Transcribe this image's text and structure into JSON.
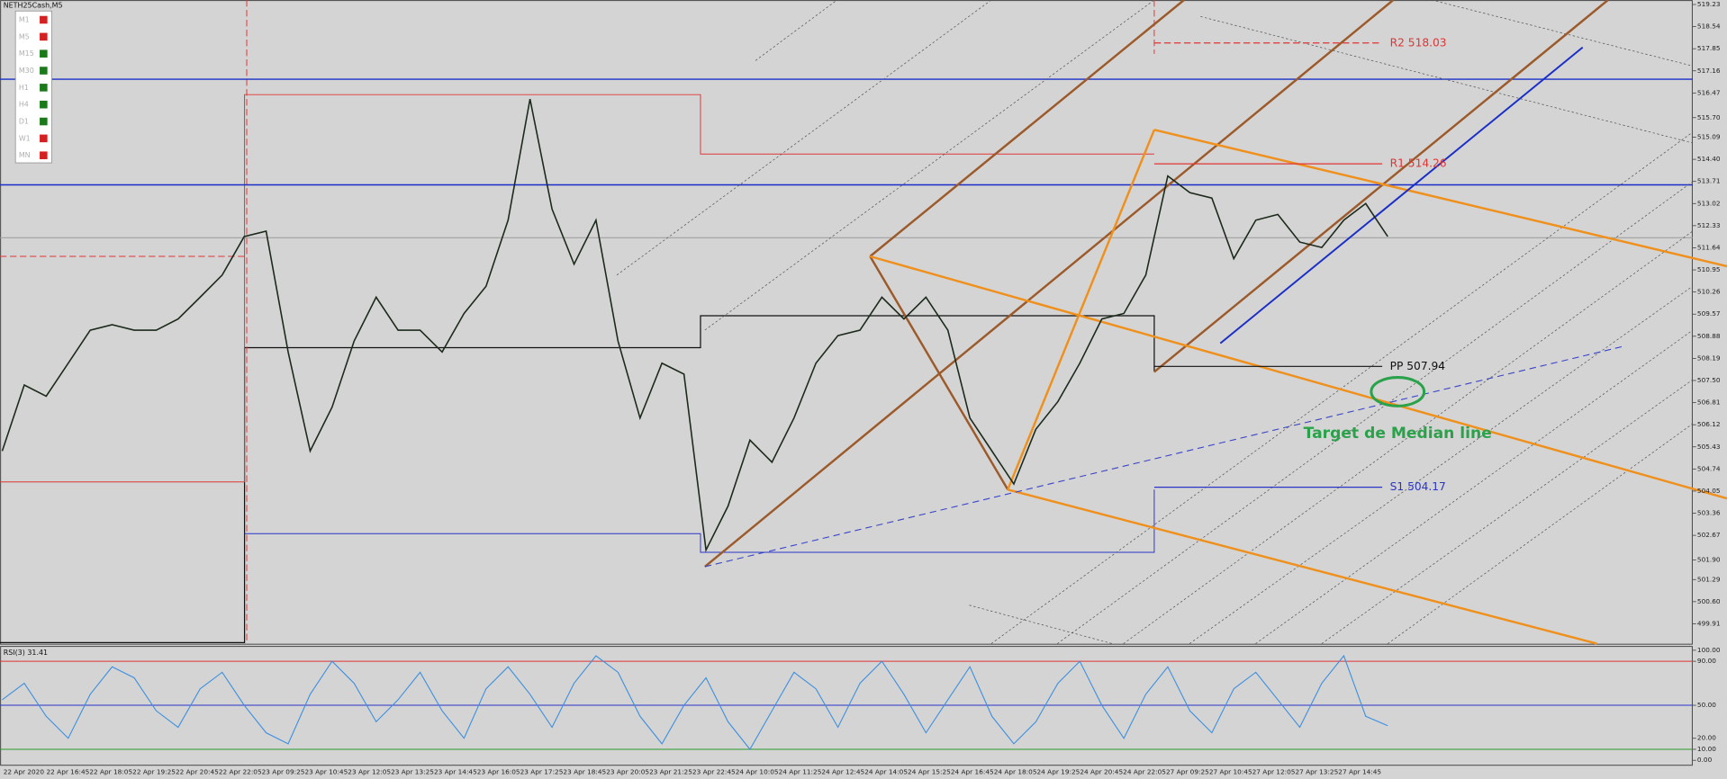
{
  "window": {
    "title": "NETH25Cash,M5",
    "timeframes": [
      {
        "name": "M1",
        "color": "#d42020"
      },
      {
        "name": "M5",
        "color": "#d42020"
      },
      {
        "name": "M15",
        "color": "#1a7a1a"
      },
      {
        "name": "M30",
        "color": "#1a7a1a"
      },
      {
        "name": "H1",
        "color": "#1a7a1a"
      },
      {
        "name": "H4",
        "color": "#1a7a1a"
      },
      {
        "name": "D1",
        "color": "#1a7a1a"
      },
      {
        "name": "W1",
        "color": "#d42020"
      },
      {
        "name": "MN",
        "color": "#d42020"
      }
    ],
    "time_labels": [
      "22 Apr 2020",
      "22 Apr 16:45",
      "22 Apr 18:05",
      "22 Apr 19:25",
      "22 Apr 20:45",
      "22 Apr 22:05",
      "23 Apr 09:25",
      "23 Apr 10:45",
      "23 Apr 12:05",
      "23 Apr 13:25",
      "23 Apr 14:45",
      "23 Apr 16:05",
      "23 Apr 17:25",
      "23 Apr 18:45",
      "23 Apr 20:05",
      "23 Apr 21:25",
      "23 Apr 22:45",
      "24 Apr 10:05",
      "24 Apr 11:25",
      "24 Apr 12:45",
      "24 Apr 14:05",
      "24 Apr 15:25",
      "24 Apr 16:45",
      "24 Apr 18:05",
      "24 Apr 19:25",
      "24 Apr 20:45",
      "24 Apr 22:05",
      "27 Apr 09:25",
      "27 Apr 10:45",
      "27 Apr 12:05",
      "27 Apr 13:25",
      "27 Apr 14:45"
    ]
  },
  "chart_data": [
    {
      "type": "line",
      "color": "#1c2a1c",
      "values": [
        505.3,
        507.36,
        507.01,
        508.04,
        509.07,
        509.24,
        509.07,
        509.07,
        509.42,
        510.1,
        510.79,
        511.99,
        512.16,
        508.39,
        505.3,
        506.67,
        508.73,
        510.1,
        509.07,
        509.07,
        508.39,
        509.59,
        510.44,
        512.5,
        516.28,
        512.85,
        511.13,
        512.5,
        508.73,
        506.33,
        508.04,
        507.7,
        502.21,
        503.58,
        505.64,
        504.95,
        506.33,
        508.04,
        508.9,
        509.07,
        510.1,
        509.42,
        510.1,
        509.07,
        506.33,
        505.3,
        504.27,
        505.98,
        506.84,
        508.04,
        509.42,
        509.59,
        510.79,
        513.88,
        513.36,
        513.19,
        511.3,
        512.5,
        512.68,
        511.82,
        511.65,
        512.5,
        513.02,
        511.99
      ],
      "ylim": [
        499.29,
        519.37
      ],
      "yticks": [
        519.23,
        518.54,
        517.85,
        517.16,
        516.47,
        {
          "value": 515.7,
          "label": "515.70"
        },
        515.09,
        {
          "value": 514.4,
          "label": "514.40"
        },
        513.71,
        513.02,
        512.33,
        511.64,
        510.95,
        510.26,
        509.57,
        508.88,
        508.19,
        {
          "value": 507.5,
          "label": "507.50"
        },
        506.81,
        506.12,
        505.43,
        504.74,
        504.05,
        503.36,
        502.67,
        {
          "value": 501.9,
          "label": "501.90"
        },
        501.29,
        {
          "value": 500.6,
          "label": "500.60"
        },
        499.91
      ],
      "levels": [
        {
          "label": "R2 518.03",
          "value": 518.03,
          "color": "#e03535"
        },
        {
          "label": "R1 514.26",
          "value": 514.26,
          "color": "#e03535"
        },
        {
          "label": "PP 507.94",
          "value": 507.94,
          "color": "#111111"
        },
        {
          "label": "S1 504.17",
          "value": 504.17,
          "color": "#2a35c8"
        }
      ],
      "annotation": "Target de Median line"
    },
    {
      "type": "line",
      "title": "RSI(3) 31.41",
      "color": "#3d8fe0",
      "values": [
        55,
        70,
        40,
        20,
        60,
        85,
        75,
        45,
        30,
        65,
        80,
        50,
        25,
        15,
        60,
        90,
        70,
        35,
        55,
        80,
        45,
        20,
        65,
        85,
        60,
        30,
        70,
        95,
        80,
        40,
        15,
        50,
        75,
        35,
        10,
        45,
        80,
        65,
        30,
        70,
        90,
        60,
        25,
        55,
        85,
        40,
        15,
        35,
        70,
        90,
        50,
        20,
        60,
        85,
        45,
        25,
        65,
        80,
        55,
        30,
        70,
        95,
        40,
        31.41
      ],
      "ylim": [
        -5,
        104
      ],
      "yticks": [
        {
          "value": 100,
          "label": "100.00"
        },
        {
          "value": 90,
          "label": "90.00"
        },
        {
          "value": 50,
          "label": "50.00"
        },
        {
          "value": 20,
          "label": "20.00"
        },
        {
          "value": 10,
          "label": "10.00"
        },
        {
          "value": 0,
          "label": "0.00"
        }
      ],
      "levels": [
        {
          "value": 90,
          "color": "#e03535"
        },
        {
          "value": 50,
          "color": "#2a35c8"
        },
        {
          "value": 10,
          "color": "#2a9a2a"
        }
      ]
    }
  ]
}
